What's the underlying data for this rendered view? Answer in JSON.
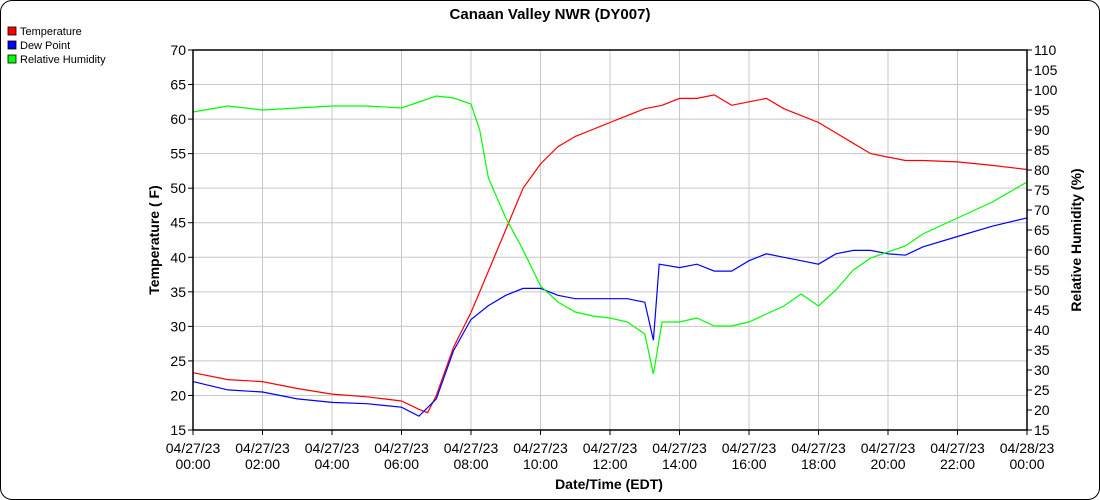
{
  "chart_data": {
    "type": "line",
    "title": "Canaan Valley NWR (DY007)",
    "xlabel": "Date/Time (EDT)",
    "ylabel": "Temperature ( F)",
    "y2label": "Relative Humidity (%)",
    "xlim": [
      "2023-04-27T00:00",
      "2023-04-28T00:00"
    ],
    "ylim": [
      15,
      70
    ],
    "y2lim": [
      15,
      110
    ],
    "grid": true,
    "legend_position": "top-left",
    "x_ticks": [
      [
        "04/27/23",
        "00:00"
      ],
      [
        "04/27/23",
        "02:00"
      ],
      [
        "04/27/23",
        "04:00"
      ],
      [
        "04/27/23",
        "06:00"
      ],
      [
        "04/27/23",
        "08:00"
      ],
      [
        "04/27/23",
        "10:00"
      ],
      [
        "04/27/23",
        "12:00"
      ],
      [
        "04/27/23",
        "14:00"
      ],
      [
        "04/27/23",
        "16:00"
      ],
      [
        "04/27/23",
        "18:00"
      ],
      [
        "04/27/23",
        "20:00"
      ],
      [
        "04/27/23",
        "22:00"
      ],
      [
        "04/28/23",
        "00:00"
      ]
    ],
    "y_ticks": [
      15,
      20,
      25,
      30,
      35,
      40,
      45,
      50,
      55,
      60,
      65,
      70
    ],
    "y2_ticks": [
      15,
      20,
      25,
      30,
      35,
      40,
      45,
      50,
      55,
      60,
      65,
      70,
      75,
      80,
      85,
      90,
      95,
      100,
      105,
      110
    ],
    "series": [
      {
        "name": "Temperature",
        "axis": "left",
        "color": "#ff0000",
        "points": [
          [
            "00:00",
            23.3
          ],
          [
            "01:00",
            22.3
          ],
          [
            "02:00",
            22
          ],
          [
            "03:00",
            21
          ],
          [
            "04:00",
            20.2
          ],
          [
            "05:00",
            19.8
          ],
          [
            "06:00",
            19.2
          ],
          [
            "06:30",
            18
          ],
          [
            "06:45",
            17.5
          ],
          [
            "07:00",
            20
          ],
          [
            "07:30",
            27
          ],
          [
            "08:00",
            32
          ],
          [
            "08:30",
            38
          ],
          [
            "09:00",
            44
          ],
          [
            "09:30",
            50
          ],
          [
            "10:00",
            53.5
          ],
          [
            "10:30",
            56
          ],
          [
            "11:00",
            57.5
          ],
          [
            "11:30",
            58.5
          ],
          [
            "12:00",
            59.5
          ],
          [
            "12:30",
            60.5
          ],
          [
            "13:00",
            61.5
          ],
          [
            "13:30",
            62
          ],
          [
            "14:00",
            63
          ],
          [
            "14:30",
            63
          ],
          [
            "15:00",
            63.5
          ],
          [
            "15:30",
            62
          ],
          [
            "16:00",
            62.5
          ],
          [
            "16:30",
            63
          ],
          [
            "17:00",
            61.5
          ],
          [
            "17:30",
            60.5
          ],
          [
            "18:00",
            59.5
          ],
          [
            "18:30",
            58
          ],
          [
            "19:00",
            56.5
          ],
          [
            "19:30",
            55
          ],
          [
            "20:00",
            54.5
          ],
          [
            "20:30",
            54
          ],
          [
            "21:00",
            54
          ],
          [
            "22:00",
            53.8
          ],
          [
            "23:00",
            53.3
          ],
          [
            "24:00",
            52.7
          ]
        ]
      },
      {
        "name": "Dew Point",
        "axis": "left",
        "color": "#0000ff",
        "points": [
          [
            "00:00",
            22
          ],
          [
            "01:00",
            20.8
          ],
          [
            "02:00",
            20.5
          ],
          [
            "03:00",
            19.5
          ],
          [
            "04:00",
            19
          ],
          [
            "05:00",
            18.8
          ],
          [
            "06:00",
            18.3
          ],
          [
            "06:30",
            17
          ],
          [
            "07:00",
            19.5
          ],
          [
            "07:30",
            26.5
          ],
          [
            "08:00",
            31
          ],
          [
            "08:30",
            33
          ],
          [
            "09:00",
            34.5
          ],
          [
            "09:30",
            35.5
          ],
          [
            "10:00",
            35.5
          ],
          [
            "10:30",
            34.5
          ],
          [
            "11:00",
            34
          ],
          [
            "11:30",
            34
          ],
          [
            "12:00",
            34
          ],
          [
            "12:30",
            34
          ],
          [
            "13:00",
            33.5
          ],
          [
            "13:15",
            28
          ],
          [
            "13:25",
            39
          ],
          [
            "14:00",
            38.5
          ],
          [
            "14:30",
            39
          ],
          [
            "15:00",
            38
          ],
          [
            "15:30",
            38
          ],
          [
            "16:00",
            39.5
          ],
          [
            "16:30",
            40.5
          ],
          [
            "17:00",
            40
          ],
          [
            "17:30",
            39.5
          ],
          [
            "18:00",
            39
          ],
          [
            "18:30",
            40.5
          ],
          [
            "19:00",
            41
          ],
          [
            "19:30",
            41
          ],
          [
            "20:00",
            40.5
          ],
          [
            "20:30",
            40.3
          ],
          [
            "21:00",
            41.5
          ],
          [
            "22:00",
            43
          ],
          [
            "23:00",
            44.5
          ],
          [
            "24:00",
            45.7
          ]
        ]
      },
      {
        "name": "Relative Humidity",
        "axis": "right",
        "color": "#00ff00",
        "points": [
          [
            "00:00",
            94.5
          ],
          [
            "01:00",
            96
          ],
          [
            "02:00",
            95
          ],
          [
            "03:00",
            95.5
          ],
          [
            "04:00",
            96
          ],
          [
            "05:00",
            96
          ],
          [
            "06:00",
            95.5
          ],
          [
            "06:30",
            97
          ],
          [
            "07:00",
            98.5
          ],
          [
            "07:30",
            98
          ],
          [
            "08:00",
            96.5
          ],
          [
            "08:15",
            90
          ],
          [
            "08:30",
            78
          ],
          [
            "09:00",
            68
          ],
          [
            "09:30",
            60
          ],
          [
            "10:00",
            51
          ],
          [
            "10:30",
            47
          ],
          [
            "11:00",
            44.5
          ],
          [
            "11:30",
            43.5
          ],
          [
            "12:00",
            43
          ],
          [
            "12:30",
            42
          ],
          [
            "13:00",
            39
          ],
          [
            "13:15",
            29
          ],
          [
            "13:30",
            42
          ],
          [
            "14:00",
            42
          ],
          [
            "14:30",
            43
          ],
          [
            "15:00",
            41
          ],
          [
            "15:30",
            41
          ],
          [
            "16:00",
            42
          ],
          [
            "16:30",
            44
          ],
          [
            "17:00",
            46
          ],
          [
            "17:30",
            49
          ],
          [
            "18:00",
            46
          ],
          [
            "18:30",
            50
          ],
          [
            "19:00",
            55
          ],
          [
            "19:30",
            58
          ],
          [
            "20:00",
            59.5
          ],
          [
            "20:30",
            61
          ],
          [
            "21:00",
            64
          ],
          [
            "22:00",
            68
          ],
          [
            "23:00",
            72
          ],
          [
            "24:00",
            77
          ]
        ]
      }
    ]
  }
}
